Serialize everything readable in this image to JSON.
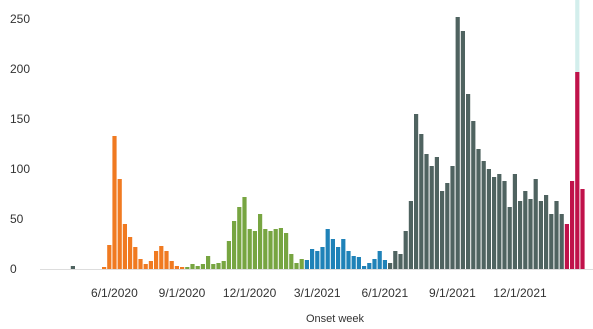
{
  "chart_data": {
    "type": "bar",
    "xlabel": "Onset week",
    "ylabel": "",
    "ylim": [
      0,
      270
    ],
    "yticks": [
      0,
      50,
      100,
      150,
      200,
      250
    ],
    "ytick_labels": [
      "0",
      "50",
      "100",
      "150",
      "200",
      "250"
    ],
    "x_tick_labels": [
      "6/1/2020",
      "9/1/2020",
      "12/1/2020",
      "3/1/2021",
      "6/1/2021",
      "9/1/2021",
      "12/1/2021"
    ],
    "x_tick_week_index": [
      12,
      25,
      38,
      51,
      64,
      77,
      90
    ],
    "colors": {
      "wave1": "#f07a21",
      "wave2": "#77a541",
      "wave3": "#1f82b8",
      "wave4": "#4f6360",
      "wave5": "#c0124a",
      "pending": "#d3eeec",
      "baseline": "#dddddd",
      "axis_text": "#333333"
    },
    "series": [
      {
        "color_key": "wave4",
        "start_week": 0,
        "values": [
          0,
          0,
          0,
          0,
          3,
          0,
          0,
          0,
          0,
          0
        ]
      },
      {
        "color_key": "wave1",
        "start_week": 10,
        "values": [
          2,
          24,
          133,
          90,
          45,
          32,
          22,
          10,
          5,
          8,
          18,
          23,
          18,
          8,
          3,
          2
        ]
      },
      {
        "color_key": "wave2",
        "start_week": 26,
        "values": [
          2,
          5,
          3,
          5,
          13,
          5,
          6,
          8,
          28,
          48,
          62,
          72,
          40,
          38,
          55,
          40,
          38,
          40,
          41,
          36,
          15,
          6,
          10
        ]
      },
      {
        "color_key": "wave3",
        "start_week": 49,
        "values": [
          9,
          20,
          18,
          22,
          40,
          30,
          22,
          30,
          18,
          13,
          12,
          3,
          6,
          10,
          18,
          9
        ]
      },
      {
        "color_key": "wave4",
        "start_week": 65,
        "values": [
          6,
          18,
          15,
          38,
          68,
          155,
          135,
          115,
          103,
          112,
          78,
          86,
          103,
          252,
          238,
          175,
          148,
          120,
          108,
          100,
          92,
          95,
          88,
          62,
          95,
          68,
          78,
          70,
          90,
          68,
          74,
          55,
          68,
          55
        ]
      },
      {
        "color_key": "wave5",
        "start_week": 99,
        "values": [
          45,
          88,
          197,
          80
        ]
      }
    ],
    "pending_values": [
      {
        "week": 101,
        "value": 270
      }
    ]
  }
}
